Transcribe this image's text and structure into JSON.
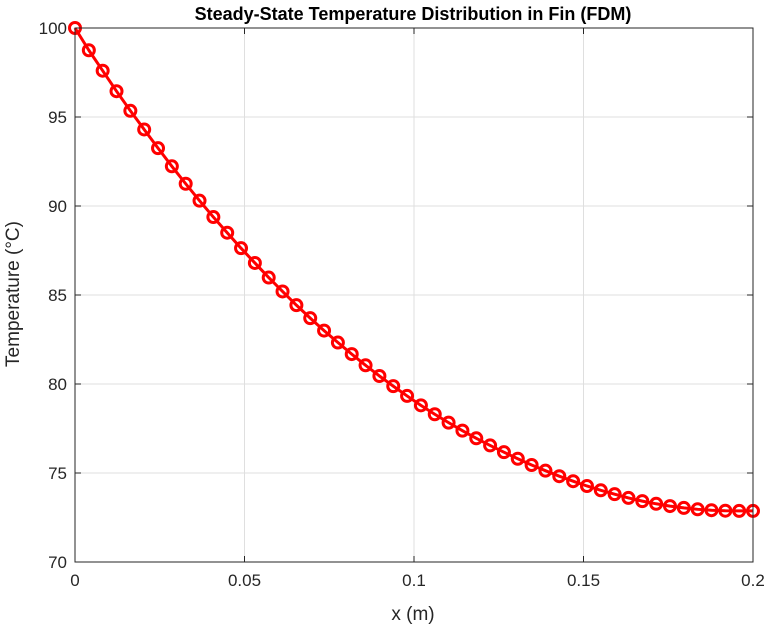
{
  "chart_data": {
    "type": "line",
    "title": "Steady-State Temperature Distribution in Fin (FDM)",
    "xlabel": "x (m)",
    "ylabel": "Temperature (°C)",
    "xlim": [
      0,
      0.2
    ],
    "ylim": [
      70,
      100
    ],
    "xticks": [
      0,
      0.05,
      0.1,
      0.15,
      0.2
    ],
    "xtick_labels": [
      "0",
      "0.05",
      "0.1",
      "0.15",
      "0.2"
    ],
    "yticks": [
      70,
      75,
      80,
      85,
      90,
      95,
      100
    ],
    "ytick_labels": [
      "70",
      "75",
      "80",
      "85",
      "90",
      "95",
      "100"
    ],
    "grid": true,
    "series": [
      {
        "color": "#ff0000",
        "marker": "circle",
        "x": [
          0,
          0.004082,
          0.008163,
          0.012245,
          0.016327,
          0.020408,
          0.02449,
          0.028571,
          0.032653,
          0.036735,
          0.040816,
          0.044898,
          0.04898,
          0.053061,
          0.057143,
          0.061224,
          0.065306,
          0.069388,
          0.073469,
          0.077551,
          0.081633,
          0.085714,
          0.089796,
          0.093878,
          0.097959,
          0.102041,
          0.106122,
          0.110204,
          0.114286,
          0.118367,
          0.122449,
          0.126531,
          0.130612,
          0.134694,
          0.138776,
          0.142857,
          0.146939,
          0.15102,
          0.155102,
          0.159184,
          0.163265,
          0.167347,
          0.171429,
          0.17551,
          0.179592,
          0.183673,
          0.187755,
          0.191837,
          0.195918,
          0.2
        ],
        "y": [
          100.0,
          98.75,
          97.6,
          96.45,
          95.35,
          94.3,
          93.25,
          92.23,
          91.25,
          90.3,
          89.38,
          88.5,
          87.63,
          86.8,
          85.98,
          85.2,
          84.43,
          83.7,
          83.0,
          82.33,
          81.68,
          81.05,
          80.45,
          79.88,
          79.33,
          78.8,
          78.3,
          77.83,
          77.38,
          76.95,
          76.55,
          76.17,
          75.8,
          75.45,
          75.13,
          74.82,
          74.54,
          74.27,
          74.03,
          73.81,
          73.6,
          73.42,
          73.27,
          73.14,
          73.04,
          72.96,
          72.91,
          72.88,
          72.87,
          72.87
        ]
      }
    ]
  }
}
